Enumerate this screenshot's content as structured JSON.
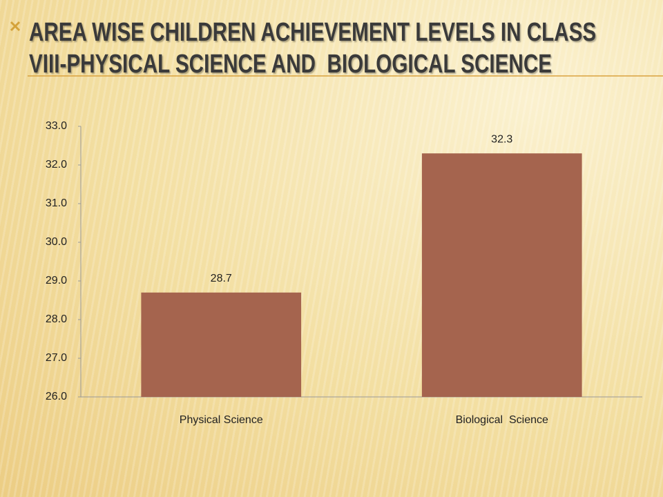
{
  "chart_data": {
    "type": "bar",
    "title": "AREA WISE CHILDREN ACHIEVEMENT LEVELS IN CLASS VIII-PHYSICAL SCIENCE AND  BIOLOGICAL SCIENCE",
    "categories": [
      "Physical Science",
      "Biological  Science"
    ],
    "values": [
      28.7,
      32.3
    ],
    "color": "#a5644e",
    "ylim": [
      26,
      33
    ],
    "yticks": [
      {
        "value": 26,
        "label": "26.0"
      },
      {
        "value": 27,
        "label": "27.0"
      },
      {
        "value": 28,
        "label": "28.0"
      },
      {
        "value": 29,
        "label": "29.0"
      },
      {
        "value": 30,
        "label": "30.0"
      },
      {
        "value": 31,
        "label": "31.0"
      },
      {
        "value": 32,
        "label": "32.0"
      },
      {
        "value": 33,
        "label": "33.0"
      }
    ],
    "grid": false
  }
}
